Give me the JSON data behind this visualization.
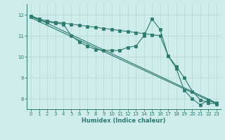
{
  "bg_color": "#ceecea",
  "grid_color": "#b8dcd8",
  "line_color": "#2d7a6e",
  "xlabel": "Humidex (Indice chaleur)",
  "xlim": [
    -0.5,
    23.5
  ],
  "ylim": [
    7.5,
    12.5
  ],
  "yticks": [
    8,
    9,
    10,
    11,
    12
  ],
  "xticks": [
    0,
    1,
    2,
    3,
    4,
    5,
    6,
    7,
    8,
    9,
    10,
    11,
    12,
    13,
    14,
    15,
    16,
    17,
    18,
    19,
    20,
    21,
    22,
    23
  ],
  "line1_x": [
    0,
    1,
    2,
    3,
    4,
    5,
    6,
    7,
    8,
    9,
    10,
    11,
    12,
    13,
    14,
    15,
    16,
    17,
    18,
    19,
    20,
    21,
    22,
    23
  ],
  "line1_y": [
    11.9,
    11.75,
    11.65,
    11.6,
    11.55,
    11.0,
    10.7,
    10.5,
    10.35,
    10.3,
    10.3,
    10.3,
    10.45,
    10.5,
    11.0,
    11.8,
    11.3,
    10.05,
    9.45,
    8.4,
    8.0,
    7.7,
    7.95,
    7.8
  ],
  "line2_x": [
    0,
    1,
    2,
    3,
    4,
    5,
    6,
    7,
    8,
    9,
    10,
    11,
    12,
    13,
    14,
    15,
    16,
    17,
    18,
    19,
    20,
    21,
    22,
    23
  ],
  "line2_y": [
    11.95,
    11.8,
    11.7,
    11.65,
    11.6,
    11.55,
    11.5,
    11.45,
    11.4,
    11.35,
    11.3,
    11.25,
    11.2,
    11.15,
    11.1,
    11.05,
    11.0,
    10.05,
    9.55,
    9.0,
    8.35,
    7.95,
    7.8,
    7.75
  ],
  "line3_x": [
    0,
    23
  ],
  "line3_y": [
    11.95,
    7.8
  ],
  "line4_x": [
    0,
    23
  ],
  "line4_y": [
    11.85,
    7.75
  ]
}
